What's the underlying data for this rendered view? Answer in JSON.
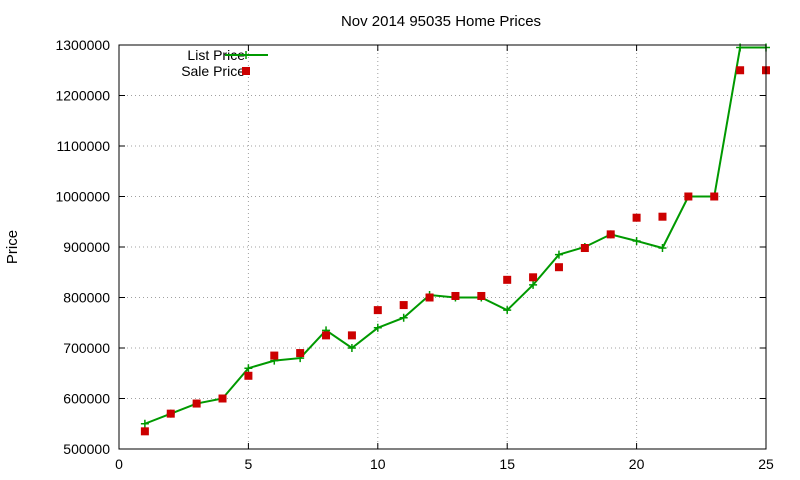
{
  "chart_data": {
    "type": "line",
    "title": "Nov 2014 95035 Home Prices",
    "xlabel": "",
    "ylabel": "Price",
    "xlim": [
      0,
      25
    ],
    "ylim": [
      500000,
      1300000
    ],
    "xticks": [
      0,
      5,
      10,
      15,
      20,
      25
    ],
    "yticks": [
      500000,
      600000,
      700000,
      800000,
      900000,
      1000000,
      1100000,
      1200000,
      1300000
    ],
    "grid": true,
    "legend_position": "top-left",
    "series": [
      {
        "name": "List Price",
        "style": "line+plus",
        "color": "#009900",
        "x": [
          1,
          2,
          3,
          4,
          5,
          6,
          7,
          8,
          9,
          10,
          11,
          12,
          13,
          14,
          15,
          16,
          17,
          18,
          19,
          20,
          21,
          22,
          23,
          24,
          25
        ],
        "y": [
          550000,
          570000,
          590000,
          600000,
          660000,
          675000,
          680000,
          735000,
          700000,
          740000,
          760000,
          805000,
          800000,
          800000,
          775000,
          825000,
          885000,
          900000,
          925000,
          912000,
          898000,
          1000000,
          1000000,
          1295000,
          1295000
        ]
      },
      {
        "name": "Sale Price",
        "style": "points",
        "color": "#cc0000",
        "x": [
          1,
          2,
          3,
          4,
          5,
          6,
          7,
          8,
          9,
          10,
          11,
          12,
          13,
          14,
          15,
          16,
          17,
          18,
          19,
          20,
          21,
          22,
          23,
          24,
          25
        ],
        "y": [
          535000,
          570000,
          590000,
          600000,
          645000,
          685000,
          690000,
          725000,
          725000,
          775000,
          785000,
          800000,
          803000,
          803000,
          835000,
          840000,
          860000,
          898000,
          925000,
          958000,
          960000,
          1000000,
          1000000,
          1250000,
          1250000
        ]
      }
    ]
  }
}
